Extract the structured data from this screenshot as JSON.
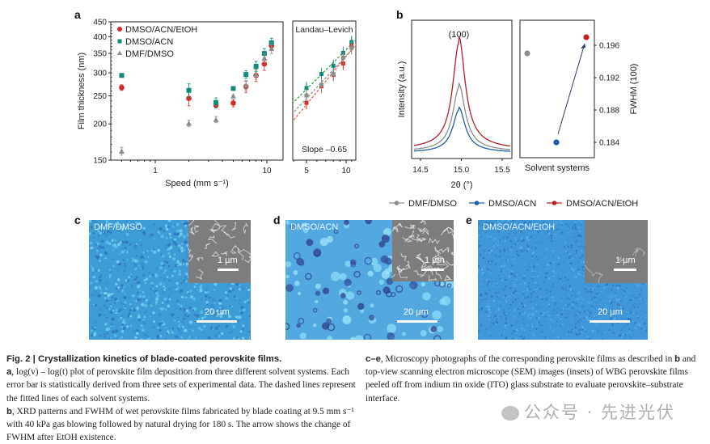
{
  "panels": {
    "a": "a",
    "b": "b",
    "c": "c",
    "d": "d",
    "e": "e"
  },
  "chart_data": [
    {
      "id": "a-main",
      "type": "scatter",
      "title": "",
      "xlabel": "Speed (mm s⁻¹)",
      "ylabel": "Film thickness (nm)",
      "xscale": "log",
      "yscale": "log",
      "xlim": [
        0.43,
        14
      ],
      "ylim": [
        150,
        450
      ],
      "xticks": [
        1,
        10
      ],
      "yticks": [
        150,
        200,
        250,
        300,
        350,
        400,
        450
      ],
      "legend_position": "top-left",
      "x": [
        0.5,
        2,
        3.5,
        5,
        6.5,
        8,
        9.5,
        11
      ],
      "series": [
        {
          "name": "DMSO/ACN/EtOH",
          "marker": "circle",
          "color": "#d42a2a",
          "values": [
            267,
            245,
            232,
            236,
            269,
            294,
            322,
            372
          ],
          "err": [
            6,
            14,
            5,
            7,
            12,
            14,
            16,
            14
          ]
        },
        {
          "name": "DMSO/ACN",
          "marker": "square",
          "color": "#138a7a",
          "values": [
            294,
            261,
            237,
            265,
            296,
            316,
            350,
            381
          ],
          "err": [
            0,
            14,
            9,
            0,
            9,
            13,
            14,
            14
          ]
        },
        {
          "name": "DMF/DMSO",
          "marker": "triangle",
          "color": "#8c8c8c",
          "values": [
            161,
            201,
            207,
            250,
            272,
            296,
            337,
            364
          ],
          "err": [
            5,
            5,
            5,
            0,
            10,
            11,
            12,
            14
          ]
        }
      ]
    },
    {
      "id": "a-inset",
      "type": "scatter",
      "title": "Landau–Levich",
      "annotation": "Slope –0.65",
      "xscale": "log",
      "yscale": "log",
      "xlim": [
        3.9,
        11.5
      ],
      "ylim": [
        150,
        450
      ],
      "xticks": [
        5,
        10
      ],
      "x": [
        5,
        6.5,
        8,
        9.5,
        11
      ],
      "series": [
        {
          "name": "DMSO/ACN/EtOH",
          "color": "#d42a2a",
          "values": [
            236,
            269,
            294,
            322,
            372
          ],
          "fit_color": "#e8593a"
        },
        {
          "name": "DMSO/ACN",
          "color": "#138a7a",
          "values": [
            265,
            296,
            316,
            350,
            381
          ],
          "fit_color": "#2e9a3a"
        },
        {
          "name": "DMF/DMSO",
          "color": "#8c8c8c",
          "values": [
            250,
            272,
            296,
            337,
            364
          ],
          "fit_color": "#8c8c8c"
        }
      ]
    },
    {
      "id": "b-xrd",
      "type": "line",
      "title": "",
      "peak_label": "(100)",
      "xlabel": "2θ (°)",
      "ylabel": "Intensity (a.u.)",
      "xlim": [
        14.42,
        15.6
      ],
      "xticks": [
        14.5,
        15.0,
        15.5
      ],
      "peak_center": 14.97,
      "series": [
        {
          "name": "DMF/DMSO",
          "color": "#8c8c8c",
          "peak_height": 0.6,
          "baseline": 0.02,
          "fwhm": 0.195
        },
        {
          "name": "DMSO/ACN",
          "color": "#1f5fa8",
          "peak_height": 0.4,
          "baseline": 0.01,
          "fwhm": 0.184
        },
        {
          "name": "DMSO/ACN/EtOH",
          "color": "#b0202a",
          "peak_height": 1.0,
          "baseline": 0.04,
          "fwhm": 0.197
        }
      ]
    },
    {
      "id": "b-fwhm",
      "type": "scatter",
      "xlabel": "Solvent systems",
      "ylabel": "FWHM (100)",
      "ylim": [
        0.1807,
        0.1985
      ],
      "yticks": [
        0.184,
        0.188,
        0.192,
        0.196
      ],
      "points": [
        {
          "name": "DMF/DMSO",
          "color": "#8c8c8c",
          "value": 0.195
        },
        {
          "name": "DMSO/ACN",
          "color": "#1f5fa8",
          "value": 0.184
        },
        {
          "name": "DMSO/ACN/EtOH",
          "color": "#c0201e",
          "value": 0.197
        }
      ],
      "arrow": {
        "from": "DMSO/ACN",
        "to": "DMSO/ACN/EtOH"
      }
    }
  ],
  "legend_b": [
    {
      "name": "DMF/DMSO",
      "color": "#8c8c8c"
    },
    {
      "name": "DMSO/ACN",
      "color": "#1f5fa8"
    },
    {
      "name": "DMSO/ACN/EtOH",
      "color": "#c0201e"
    }
  ],
  "micrographs": [
    {
      "label": "DMF/DMSO",
      "scale_main": "20 µm",
      "scale_inset": "1 µm"
    },
    {
      "label": "DMSO/ACN",
      "scale_main": "20 µm",
      "scale_inset": "1 µm"
    },
    {
      "label": "DMSO/ACN/EtOH",
      "scale_main": "20 µm",
      "scale_inset": "1 µm"
    }
  ],
  "caption": {
    "title": "Fig. 2 | Crystallization kinetics of blade-coated perovskite films.",
    "a_tag": "a",
    "a_text": ", log(v) – log(t) plot of perovskite film deposition from three different solvent systems. Each error bar is statistically derived from three sets of experimental data. The dashed lines represent the fitted lines of each solvent systems.",
    "b_tag": "b",
    "b_text": ", XRD patterns and FWHM of wet perovskite films fabricated by blade coating at 9.5 mm s⁻¹ with 40 kPa gas blowing followed by natural drying for 180 s. The arrow shows the change of FWHM after EtOH existence. ",
    "ce_tag": "c–e",
    "ce_text": ", Microscopy photographs of the corresponding perovskite films as described in ",
    "b_ref": "b",
    "ce_text2": " and top-view scanning electron microscope (SEM) images (insets) of WBG perovskite films peeled off from indium tin oxide (ITO) glass substrate to evaluate perovskite–substrate interface."
  },
  "watermark": "公众号 · 先进光伏"
}
